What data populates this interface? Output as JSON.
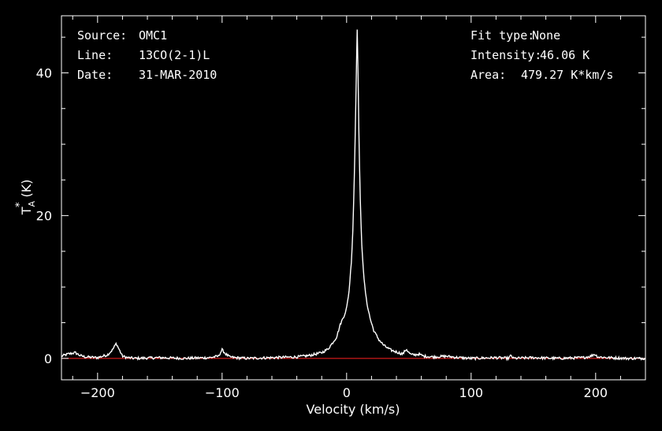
{
  "info": {
    "source_label": "Source:",
    "source_value": "OMC1",
    "line_label": "Line:",
    "line_value": "13CO(2-1)L",
    "date_label": "Date:",
    "date_value": "31-MAR-2010",
    "fit_label": "Fit type:",
    "fit_value": "None",
    "intensity_label": "Intensity:",
    "intensity_value": "46.06 K",
    "area_label": "Area:",
    "area_value": "479.27 K*km/s"
  },
  "colors": {
    "background": "#000000",
    "axes": "#ffffff",
    "spectrum": "#ffffff",
    "baseline": "#ff2020"
  },
  "chart_data": {
    "type": "line",
    "title": "",
    "xlabel": "Velocity (km/s)",
    "ylabel_main": "T",
    "ylabel_sup": "*",
    "ylabel_sub": "A",
    "ylabel_unit": "(K)",
    "xlim": [
      -229,
      240
    ],
    "ylim": [
      -3,
      48
    ],
    "x_ticks": [
      -200,
      -100,
      0,
      100,
      200
    ],
    "x_tick_labels": [
      "−200",
      "−100",
      "0",
      "100",
      "200"
    ],
    "y_ticks": [
      0,
      20,
      40
    ],
    "y_tick_labels": [
      "0",
      "20",
      "40"
    ],
    "grid": false,
    "baseline_y": 0,
    "series": [
      {
        "x": [
          -229,
          -224,
          -218,
          -214,
          -210,
          -200,
          -192,
          -188,
          -185,
          -182,
          -180,
          -176,
          -170,
          -150,
          -130,
          -110,
          -103,
          -100,
          -97,
          -94,
          -90,
          -80,
          -60,
          -40,
          -30,
          -20,
          -15,
          -12,
          -8,
          -5,
          -2,
          0,
          2,
          4,
          5,
          6,
          7,
          8,
          8.5,
          9,
          10,
          11,
          12,
          14,
          16,
          19,
          22,
          26,
          30,
          35,
          40,
          45,
          48,
          50,
          52,
          55,
          58,
          62,
          70,
          80,
          90,
          100,
          120,
          130,
          132,
          134,
          150,
          170,
          190,
          196,
          199,
          202,
          210,
          225,
          240
        ],
        "y": [
          0.3,
          0.6,
          0.8,
          0.4,
          0.2,
          0.1,
          0.5,
          1.2,
          2.1,
          1.0,
          0.3,
          0.1,
          0.0,
          0.1,
          0.0,
          0.1,
          0.3,
          1.2,
          0.6,
          0.2,
          0.1,
          0.0,
          0.1,
          0.2,
          0.4,
          0.8,
          1.3,
          2.0,
          3.0,
          4.8,
          6.0,
          7.0,
          9.5,
          14.0,
          18.0,
          24.0,
          32.0,
          42.0,
          46.06,
          42.0,
          30.0,
          22.0,
          16.5,
          11.0,
          8.0,
          5.5,
          3.8,
          2.6,
          1.8,
          1.2,
          0.9,
          0.6,
          1.3,
          0.8,
          0.5,
          0.5,
          0.6,
          0.3,
          0.2,
          0.3,
          0.1,
          0.0,
          0.1,
          0.0,
          0.4,
          0.0,
          0.1,
          0.0,
          0.1,
          0.3,
          0.6,
          0.2,
          0.1,
          0.0,
          0.0
        ],
        "noise_amplitude": 0.18
      }
    ]
  }
}
